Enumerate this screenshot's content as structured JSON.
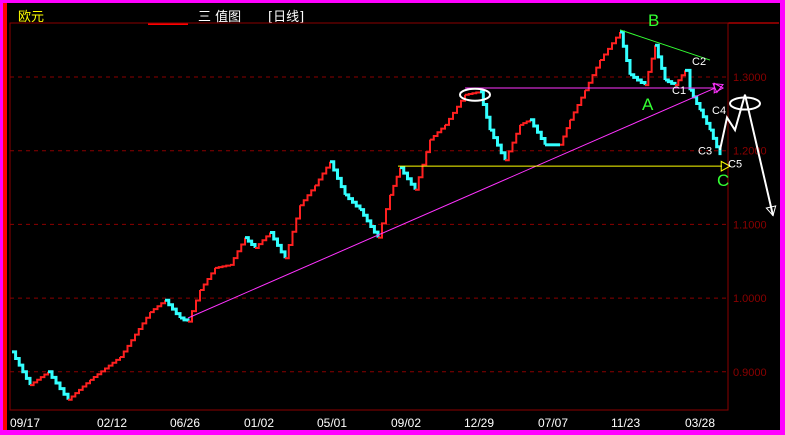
{
  "header": {
    "symbol": "欧元",
    "chart_name": "三 值图",
    "period": "[日线]"
  },
  "colors": {
    "background": "#000000",
    "up": "#ff2020",
    "down": "#33ffff",
    "axis": "#8b0000",
    "border": "#ff00ff"
  },
  "chart_data": {
    "type": "line",
    "style": "three-value step chart (red up, cyan down)",
    "title": "",
    "ylim": [
      0.855,
      1.375
    ],
    "y_ticks": [
      0.9,
      1.0,
      1.1,
      1.2,
      1.3
    ],
    "y_tick_labels": [
      "0.9000",
      "1.0000",
      "1.1000",
      "1.2000",
      "1.3000"
    ],
    "x_tick_labels": [
      "09/17",
      "02/12",
      "06/26",
      "01/02",
      "05/01",
      "09/02",
      "12/29",
      "07/07",
      "11/23",
      "03/28"
    ],
    "x_tick_index": [
      2,
      89,
      162,
      236,
      309,
      383,
      456,
      530,
      603,
      677
    ],
    "grid": "horizontal dashed",
    "series": [
      {
        "x": [
          2,
          20,
          38,
          58,
          80,
          110,
          140,
          155,
          170,
          178,
          190,
          205,
          220,
          235,
          245,
          260,
          275,
          290,
          305,
          320,
          335,
          350,
          368,
          380,
          390,
          405,
          420,
          435,
          455,
          470,
          480,
          495,
          510,
          520,
          535,
          550,
          560,
          575,
          590,
          610,
          620,
          635,
          645,
          655,
          665,
          675,
          680,
          690,
          700,
          710
        ],
        "y": [
          0.927,
          0.882,
          0.9,
          0.862,
          0.889,
          0.92,
          0.981,
          0.997,
          0.973,
          0.968,
          1.011,
          1.041,
          1.045,
          1.082,
          1.068,
          1.089,
          1.054,
          1.126,
          1.153,
          1.185,
          1.14,
          1.12,
          1.082,
          1.14,
          1.177,
          1.147,
          1.215,
          1.235,
          1.276,
          1.28,
          1.228,
          1.187,
          1.235,
          1.242,
          1.208,
          1.208,
          1.242,
          1.282,
          1.323,
          1.361,
          1.303,
          1.289,
          1.343,
          1.296,
          1.289,
          1.309,
          1.282,
          1.255,
          1.228,
          1.194
        ]
      }
    ],
    "annotations": {
      "lines": [
        {
          "name": "trendline-A",
          "color": "#ff33ff",
          "from": [
            178,
            0.973
          ],
          "to": [
            705,
            1.285
          ],
          "arrow": true
        },
        {
          "name": "resistance",
          "color": "#ff33ff",
          "from": [
            455,
            1.285
          ],
          "to": [
            705,
            1.285
          ],
          "arrow": true
        },
        {
          "name": "support",
          "color": "#ffff00",
          "from": [
            388,
            1.179
          ],
          "to": [
            712,
            1.179
          ],
          "arrow": true
        },
        {
          "name": "top-line",
          "color": "#33ff33",
          "from": [
            610,
            1.364
          ],
          "to": [
            700,
            1.323
          ],
          "arrow": false
        }
      ],
      "projection": {
        "color": "#ffffff",
        "points": [
          [
            710,
            1.201
          ],
          [
            717,
            1.245
          ],
          [
            725,
            1.228
          ],
          [
            735,
            1.276
          ],
          [
            763,
            1.112
          ]
        ]
      },
      "ellipses": [
        [
          465,
          1.276
        ],
        [
          735,
          1.264
        ]
      ],
      "labels": [
        {
          "text": "A",
          "color": "#33ff33",
          "at": [
            632,
            1.255
          ],
          "size": "large"
        },
        {
          "text": "B",
          "color": "#33ff33",
          "at": [
            638,
            1.369
          ],
          "size": "large"
        },
        {
          "text": "C",
          "color": "#33ff33",
          "at": [
            707,
            1.152
          ],
          "size": "large"
        },
        {
          "text": "C1",
          "color": "#ffffff",
          "at": [
            662,
            1.277
          ],
          "size": "small"
        },
        {
          "text": "C2",
          "color": "#ffffff",
          "at": [
            682,
            1.316
          ],
          "size": "small"
        },
        {
          "text": "C3",
          "color": "#ffffff",
          "at": [
            688,
            1.195
          ],
          "size": "small"
        },
        {
          "text": "C4",
          "color": "#ffffff",
          "at": [
            702,
            1.25
          ],
          "size": "small"
        },
        {
          "text": "C5",
          "color": "#ffffff",
          "at": [
            718,
            1.177
          ],
          "size": "small"
        }
      ]
    }
  }
}
